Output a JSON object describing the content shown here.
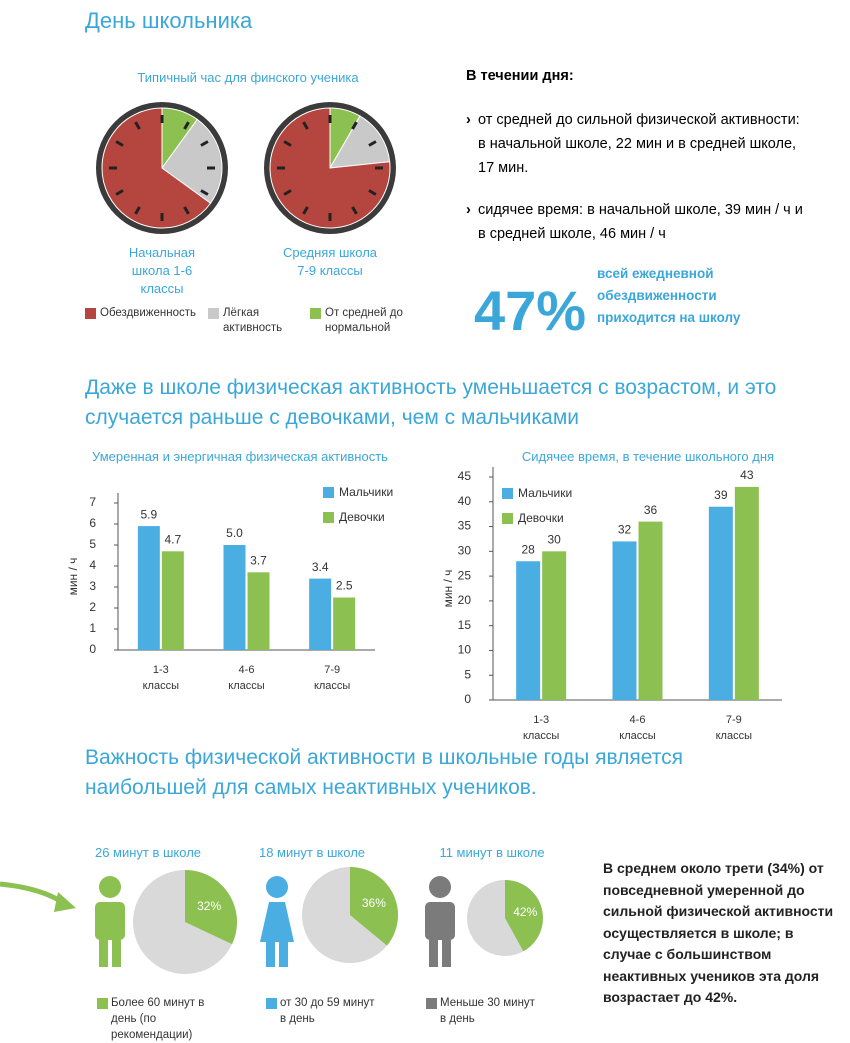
{
  "title": "День школьника",
  "day": {
    "heading": "В течении дня:",
    "items": [
      "от средней до сильной физической активности: в начальной школе, 22 мин и в средней школе, 17 мин.",
      "сидячее время: в начальной школе, 39 мин / ч и в средней школе, 46 мин / ч"
    ]
  },
  "highlight": {
    "value": "47%",
    "text": "всей ежедневной обездвиженности приходится на школу"
  },
  "headings": [
    "Даже в школе физическая активность уменьшается с возрастом, и это случается раньше с девочками, чем с мальчиками",
    "Важность физической активности в школьные годы является наибольшей для самых неактивных учеников."
  ],
  "note": "В среднем около трети (34%) от повседневной умеренной до сильной физической активности осуществляется в школе; в случае с большинством неактивных учеников эта доля возрастает до 42%.",
  "chart_data": [
    {
      "type": "pie",
      "title": "Типичный час для финского ученика",
      "categories": [
        "Обездвиженность",
        "Лёгкая активность",
        "От средней до нормальной"
      ],
      "colors": [
        "#b5453f",
        "#c9c9c9",
        "#8cc152"
      ],
      "pies": [
        {
          "label": "Начальная школа 1-6 классы",
          "values": [
            39,
            15,
            6
          ]
        },
        {
          "label": "Средняя школа 7-9 классы",
          "values": [
            46,
            9,
            5
          ]
        }
      ]
    },
    {
      "type": "bar",
      "title": "Умеренная и энергичная физическая активность",
      "y_label": "мин / ч",
      "categories": [
        "1-3 классы",
        "4-6 классы",
        "7-9 классы"
      ],
      "series": [
        {
          "name": "Мальчики",
          "color": "#4aaee3",
          "values": [
            5.9,
            5.0,
            3.4
          ],
          "value_labels": [
            "5.9",
            "5.0",
            "3.4"
          ]
        },
        {
          "name": "Девочки",
          "color": "#8cc152",
          "values": [
            4.7,
            3.7,
            2.5
          ],
          "value_labels": [
            "4.7",
            "3.7",
            "2.5"
          ]
        }
      ],
      "ylim": [
        0,
        7
      ],
      "yticks": [
        0,
        1,
        2,
        3,
        4,
        5,
        6,
        7
      ]
    },
    {
      "type": "bar",
      "title": "Сидячее время, в течение школьного дня",
      "y_label": "мин / ч",
      "categories": [
        "1-3 классы",
        "4-6 классы",
        "7-9 классы"
      ],
      "series": [
        {
          "name": "Мальчики",
          "color": "#4aaee3",
          "values": [
            28,
            32,
            39
          ]
        },
        {
          "name": "Девочки",
          "color": "#8cc152",
          "values": [
            30,
            36,
            43
          ]
        }
      ],
      "ylim": [
        0,
        45
      ],
      "yticks": [
        0,
        5,
        10,
        15,
        20,
        25,
        30,
        35,
        40,
        45
      ]
    },
    {
      "type": "pie",
      "slice_color": "#8cc152",
      "pies": [
        {
          "title": "26 минут в школе",
          "values": [
            32
          ],
          "value_labels": [
            "32%"
          ],
          "color": "#8cc152",
          "legend": "Более 60 минут в день (по рекомендации)"
        },
        {
          "title": "18 минут в школе",
          "values": [
            36
          ],
          "value_labels": [
            "36%"
          ],
          "color": "#4aaee3",
          "legend": "от 30 до 59 минут в день"
        },
        {
          "title": "11 минут в школе",
          "values": [
            42
          ],
          "value_labels": [
            "42%"
          ],
          "color": "#7b7b7b",
          "legend": "Меньше 30 минут в день"
        }
      ]
    }
  ]
}
